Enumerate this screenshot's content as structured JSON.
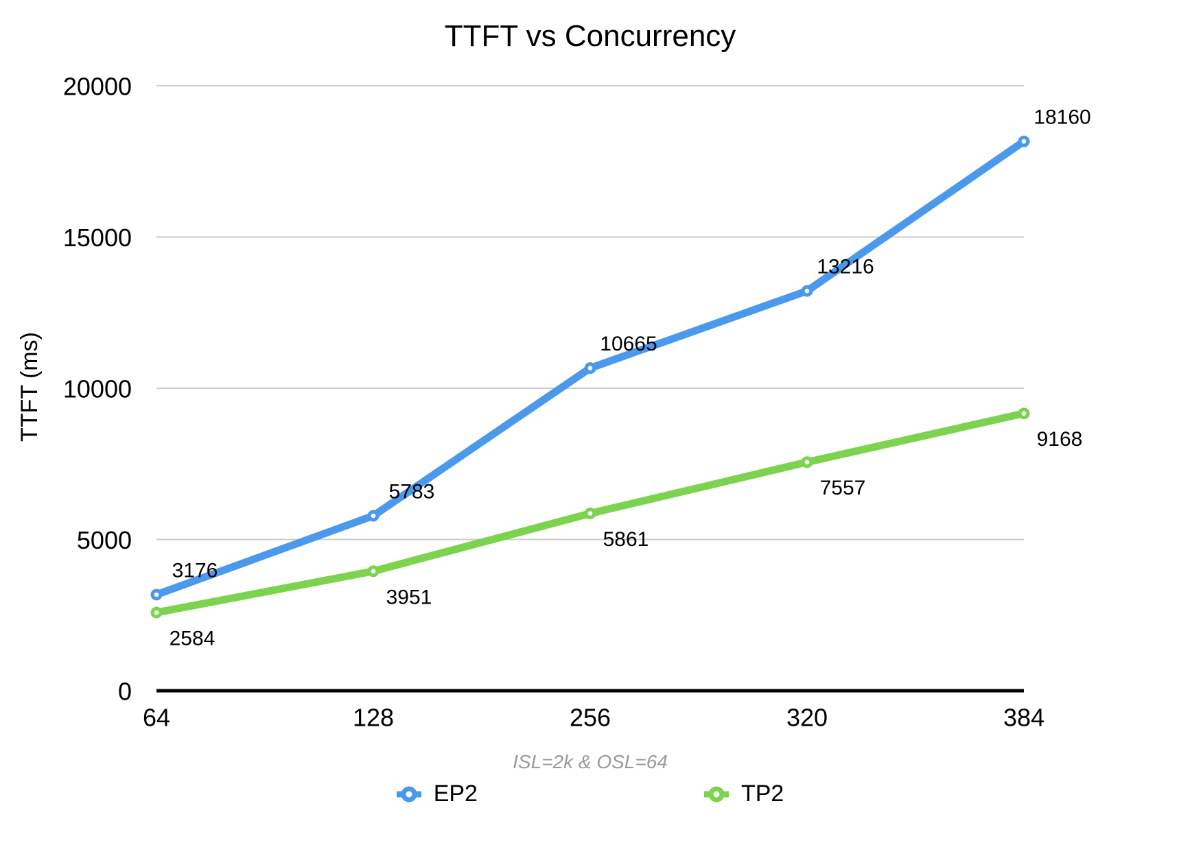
{
  "title": "TTFT vs Concurrency",
  "y_axis": {
    "label": "TTFT (ms)",
    "tick_labels": [
      "0",
      "5000",
      "10000",
      "15000",
      "20000"
    ]
  },
  "x_axis": {
    "tick_labels": [
      "64",
      "128",
      "256",
      "320",
      "384"
    ],
    "note": "ISL=2k & OSL=64"
  },
  "colors": {
    "ep2_blue": "#4b99ec",
    "tp2_green": "#7cd34e",
    "gridline_gray": "#cccccc",
    "axis_black": "#000000",
    "note_gray": "#9a9a9a"
  },
  "chart_data": {
    "type": "line",
    "title": "TTFT vs Concurrency",
    "categories": [
      64,
      128,
      256,
      320,
      384
    ],
    "series": [
      {
        "name": "EP2",
        "color": "#4b99ec",
        "values": [
          3176,
          5783,
          10665,
          13216,
          18160
        ]
      },
      {
        "name": "TP2",
        "color": "#7cd34e",
        "values": [
          2584,
          3951,
          5861,
          7557,
          9168
        ]
      }
    ],
    "xlabel": "",
    "ylabel": "TTFT (ms)",
    "ylim": [
      0,
      20000
    ],
    "yticks": [
      0,
      5000,
      10000,
      15000,
      20000
    ],
    "grid": true,
    "data_labels": true,
    "legend_position": "bottom",
    "annotation": "ISL=2k & OSL=64"
  }
}
